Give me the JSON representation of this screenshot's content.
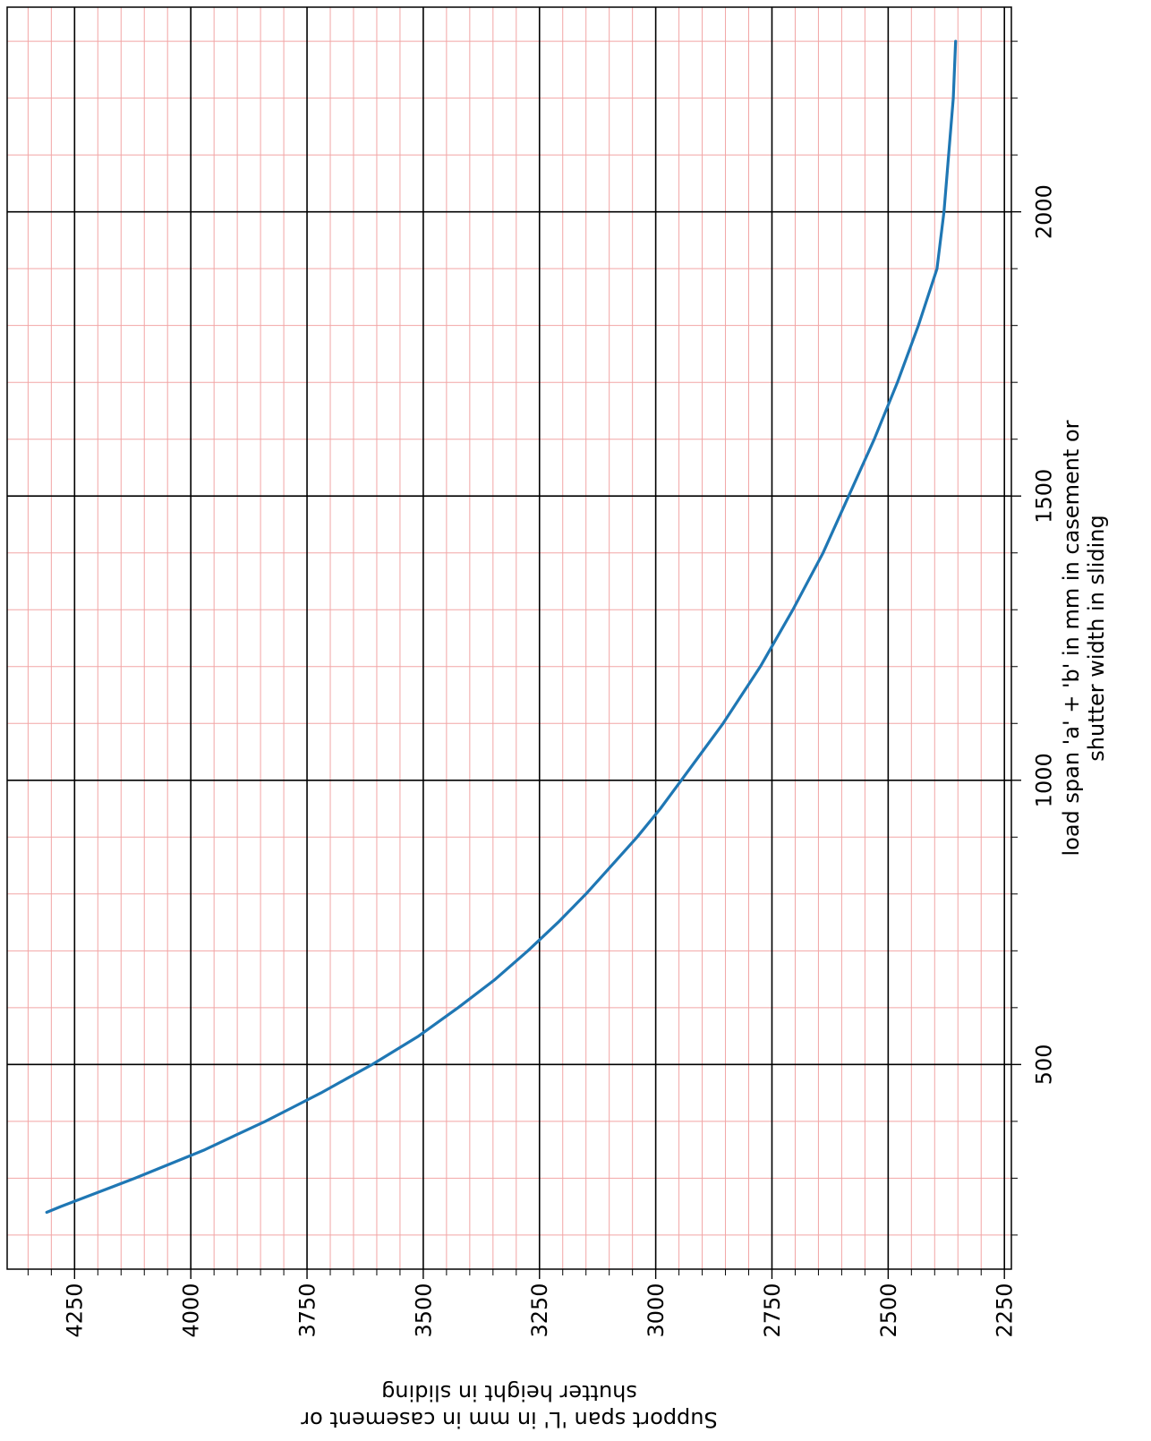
{
  "chart_data": {
    "type": "line",
    "orientation": "figure rotated 90 degrees clockwise",
    "xlabel": "load span 'a' + 'b' in mm in casement or\nshutter width in sliding",
    "ylabel": "Support span 'L' in mm in casement or\nshutter height in sliding",
    "xlim": [
      140,
      2360
    ],
    "ylim": [
      2235,
      4395
    ],
    "x_ticks": [
      500,
      1000,
      1500,
      2000
    ],
    "x_tick_labels": [
      "500",
      "1000",
      "1500",
      "2000"
    ],
    "x_minor_ticks": [
      200,
      300,
      400,
      600,
      700,
      800,
      900,
      1100,
      1200,
      1300,
      1400,
      1600,
      1700,
      1800,
      1900,
      2100,
      2200,
      2300
    ],
    "y_ticks": [
      2250,
      2500,
      2750,
      3000,
      3250,
      3500,
      3750,
      4000,
      4250
    ],
    "y_tick_labels": [
      "2250",
      "2500",
      "2750",
      "3000",
      "3250",
      "3500",
      "3750",
      "4000",
      "4250"
    ],
    "y_minor_ticks": [
      2300,
      2350,
      2400,
      2450,
      2550,
      2600,
      2650,
      2700,
      2800,
      2850,
      2900,
      2950,
      3050,
      3100,
      3150,
      3200,
      3300,
      3350,
      3400,
      3450,
      3550,
      3600,
      3650,
      3700,
      3800,
      3850,
      3900,
      3950,
      4050,
      4100,
      4150,
      4200,
      4300,
      4350
    ],
    "grid": "major black, minor light red",
    "series": [
      {
        "color": "#1f77b4",
        "x": [
          240,
          250,
          275,
          300,
          325,
          350,
          375,
          400,
          425,
          450,
          475,
          500,
          550,
          600,
          650,
          700,
          750,
          800,
          850,
          900,
          950,
          1000,
          1050,
          1100,
          1150,
          1200,
          1300,
          1400,
          1500,
          1600,
          1700,
          1800,
          1900,
          2000,
          2100,
          2200,
          2300
        ],
        "y": [
          4310,
          4280,
          4200,
          4120,
          4045,
          3970,
          3905,
          3840,
          3780,
          3720,
          3665,
          3610,
          3510,
          3425,
          3345,
          3275,
          3210,
          3150,
          3095,
          3040,
          2990,
          2945,
          2900,
          2855,
          2815,
          2775,
          2705,
          2640,
          2585,
          2530,
          2480,
          2435,
          2395,
          2380,
          2370,
          2360,
          2355
        ]
      }
    ]
  }
}
